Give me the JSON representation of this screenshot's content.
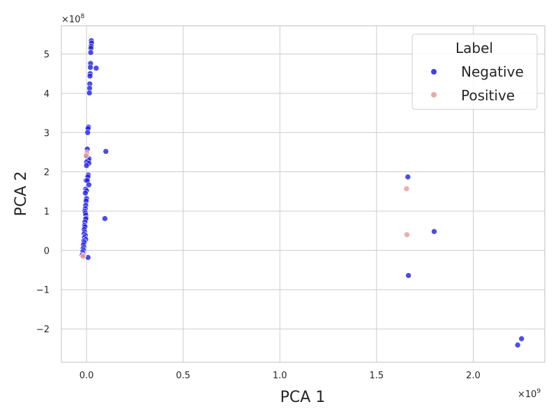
{
  "chart_data": {
    "type": "scatter",
    "xlabel": "PCA 1",
    "ylabel": "PCA 2",
    "x_exponent_label": "×10",
    "x_exponent_power": "9",
    "y_exponent_label": "×10",
    "y_exponent_power": "8",
    "x_scale": 1000000000,
    "y_scale": 100000000,
    "xlim": [
      -0.13,
      2.37
    ],
    "ylim": [
      -2.85,
      5.72
    ],
    "x_ticks": [
      0.0,
      0.5,
      1.0,
      1.5,
      2.0
    ],
    "x_tick_labels": [
      "0.0",
      "0.5",
      "1.0",
      "1.5",
      "2.0"
    ],
    "y_ticks": [
      -2,
      -1,
      0,
      1,
      2,
      3,
      4,
      5
    ],
    "y_tick_labels": [
      "−2",
      "−1",
      "0",
      "1",
      "2",
      "3",
      "4",
      "5"
    ],
    "grid": true,
    "legend": {
      "title": "Label",
      "placement": "top-right"
    },
    "series": [
      {
        "name": "Negative",
        "color": "#1f1fe8",
        "points": [
          [
            0.025,
            5.34
          ],
          [
            0.026,
            5.28
          ],
          [
            0.024,
            5.2
          ],
          [
            0.023,
            5.15
          ],
          [
            0.022,
            5.04
          ],
          [
            0.05,
            4.64
          ],
          [
            0.021,
            4.76
          ],
          [
            0.02,
            4.66
          ],
          [
            0.019,
            4.5
          ],
          [
            0.018,
            4.44
          ],
          [
            0.017,
            4.24
          ],
          [
            0.016,
            4.13
          ],
          [
            0.015,
            4.01
          ],
          [
            0.01,
            3.14
          ],
          [
            0.008,
            3.1
          ],
          [
            0.006,
            3.0
          ],
          [
            0.004,
            2.58
          ],
          [
            0.1,
            2.52
          ],
          [
            0.002,
            2.4
          ],
          [
            0.006,
            2.35
          ],
          [
            0.014,
            2.33
          ],
          [
            0.01,
            2.3
          ],
          [
            0.001,
            2.25
          ],
          [
            0.012,
            2.22
          ],
          [
            0.0,
            2.16
          ],
          [
            0.009,
            1.92
          ],
          [
            0.007,
            1.87
          ],
          [
            -0.002,
            1.78
          ],
          [
            0.004,
            1.78
          ],
          [
            0.012,
            1.67
          ],
          [
            -0.004,
            1.56
          ],
          [
            0.0,
            1.52
          ],
          [
            -0.006,
            1.46
          ],
          [
            0.0,
            1.32
          ],
          [
            -0.002,
            1.26
          ],
          [
            -0.004,
            1.15
          ],
          [
            -0.006,
            1.06
          ],
          [
            -0.008,
            1.0
          ],
          [
            -0.006,
            0.95
          ],
          [
            -0.004,
            0.9
          ],
          [
            -0.002,
            0.82
          ],
          [
            -0.004,
            0.8
          ],
          [
            0.095,
            0.81
          ],
          [
            -0.008,
            0.72
          ],
          [
            -0.01,
            0.64
          ],
          [
            -0.008,
            0.6
          ],
          [
            -0.012,
            0.53
          ],
          [
            -0.01,
            0.47
          ],
          [
            -0.012,
            0.42
          ],
          [
            -0.006,
            0.38
          ],
          [
            -0.01,
            0.33
          ],
          [
            -0.004,
            0.28
          ],
          [
            -0.014,
            0.24
          ],
          [
            -0.012,
            0.2
          ],
          [
            -0.016,
            0.14
          ],
          [
            -0.014,
            0.08
          ],
          [
            -0.018,
            0.04
          ],
          [
            -0.016,
            0.0
          ],
          [
            -0.02,
            -0.04
          ],
          [
            -0.018,
            -0.08
          ],
          [
            -0.022,
            -0.12
          ],
          [
            0.008,
            -0.18
          ],
          [
            1.662,
            1.87
          ],
          [
            1.798,
            0.48
          ],
          [
            1.665,
            -0.64
          ],
          [
            2.25,
            -2.25
          ],
          [
            2.23,
            -2.41
          ]
        ]
      },
      {
        "name": "Positive",
        "color": "#e89a9a",
        "points": [
          [
            0.002,
            2.49
          ],
          [
            -0.002,
            2.41
          ],
          [
            -0.015,
            -0.13
          ],
          [
            -0.018,
            -0.15
          ],
          [
            1.655,
            1.57
          ],
          [
            1.657,
            0.4
          ]
        ]
      }
    ]
  }
}
